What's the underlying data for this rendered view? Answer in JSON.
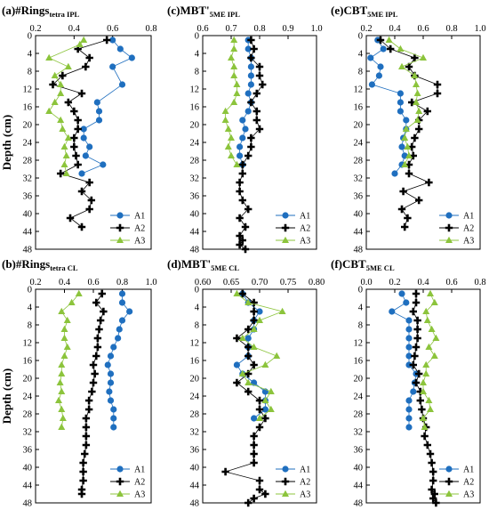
{
  "chart_data": [
    {
      "type": "scatter",
      "panel": "(a)",
      "title_main": "#Rings",
      "title_sub": "tetra IPL",
      "ylabel": "Depth (cm)",
      "xlim": [
        0.2,
        0.8
      ],
      "xticks": [
        "0.2",
        "0.4",
        "0.6",
        "0.8"
      ],
      "ylim": [
        0,
        48
      ],
      "yticks": [
        "0",
        "4",
        "8",
        "12",
        "16",
        "20",
        "24",
        "28",
        "32",
        "36",
        "40",
        "44",
        "48"
      ],
      "legend": "bottom-right",
      "series": [
        {
          "name": "A1",
          "color": "#1f6fbf",
          "marker": "circle",
          "lines": true,
          "x": [
            0.6,
            0.64,
            0.7,
            0.6,
            0.65,
            0.52,
            0.53,
            0.53,
            0.45,
            0.45,
            0.48,
            0.46,
            0.55,
            0.44
          ],
          "y": [
            1,
            3,
            5,
            7,
            11,
            15,
            17,
            19,
            21,
            23,
            25,
            27,
            29,
            31
          ]
        },
        {
          "name": "A2",
          "color": "#000000",
          "marker": "plus",
          "lines": true,
          "x": [
            0.57,
            0.42,
            0.48,
            0.46,
            0.34,
            0.29,
            0.44,
            0.37,
            0.4,
            0.42,
            0.42,
            0.4,
            0.4,
            0.41,
            0.42,
            0.33,
            0.48,
            0.44,
            0.49,
            0.48,
            0.38,
            0.44
          ],
          "y": [
            1,
            3,
            5,
            7,
            9,
            11,
            13,
            15,
            17,
            19,
            21,
            23,
            25,
            27,
            29,
            31,
            33,
            35,
            37,
            39,
            41,
            43
          ]
        },
        {
          "name": "A3",
          "color": "#8cc43c",
          "marker": "triangle",
          "lines": true,
          "x": [
            0.45,
            0.43,
            0.27,
            0.37,
            0.3,
            0.33,
            0.33,
            0.3,
            0.27,
            0.33,
            0.34,
            0.37,
            0.35,
            0.36,
            0.35,
            0.36
          ],
          "y": [
            1,
            2,
            5,
            7,
            9,
            11,
            13,
            15,
            17,
            19,
            21,
            23,
            25,
            27,
            29,
            31
          ]
        }
      ]
    },
    {
      "type": "scatter",
      "panel": "(c)",
      "title_main": "MBT'",
      "title_sub": "5ME IPL",
      "ylabel": "",
      "xlim": [
        0.6,
        1.0
      ],
      "xticks": [
        "0.6",
        "0.7",
        "0.8",
        "0.9",
        "1.0"
      ],
      "ylim": [
        0,
        48
      ],
      "yticks": [
        "0",
        "4",
        "8",
        "12",
        "16",
        "20",
        "24",
        "28",
        "32",
        "36",
        "40",
        "44",
        "48"
      ],
      "legend": "bottom-right",
      "series": [
        {
          "name": "A1",
          "color": "#1f6fbf",
          "marker": "circle",
          "lines": true,
          "x": [
            0.76,
            0.76,
            0.77,
            0.77,
            0.77,
            0.77,
            0.76,
            0.77,
            0.76,
            0.74,
            0.75,
            0.74,
            0.73,
            0.73,
            0.74
          ],
          "y": [
            1,
            3,
            5,
            7,
            9,
            11,
            13,
            15,
            17,
            19,
            21,
            23,
            25,
            27,
            29
          ]
        },
        {
          "name": "A2",
          "color": "#000000",
          "marker": "plus",
          "lines": true,
          "x": [
            0.77,
            0.78,
            0.77,
            0.8,
            0.8,
            0.81,
            0.79,
            0.77,
            0.79,
            0.79,
            0.8,
            0.77,
            0.77,
            0.76,
            0.74,
            0.74,
            0.73,
            0.73,
            0.74,
            0.76,
            0.73,
            0.75,
            0.73,
            0.74,
            0.73,
            0.75
          ],
          "y": [
            1,
            3,
            5,
            7,
            9,
            11,
            13,
            15,
            17,
            19,
            21,
            23,
            25,
            27,
            29,
            31,
            33,
            35,
            37,
            39,
            41,
            43,
            45,
            46,
            47,
            48
          ]
        },
        {
          "name": "A3",
          "color": "#8cc43c",
          "marker": "triangle",
          "lines": true,
          "x": [
            0.71,
            0.71,
            0.7,
            0.71,
            0.71,
            0.72,
            0.72,
            0.71,
            0.68,
            0.68,
            0.69,
            0.7,
            0.69,
            0.7,
            0.72
          ],
          "y": [
            1,
            3,
            5,
            7,
            9,
            11,
            13,
            15,
            17,
            19,
            21,
            23,
            25,
            27,
            29
          ]
        }
      ]
    },
    {
      "type": "scatter",
      "panel": "(e)",
      "title_main": "CBT",
      "title_sub": "5ME IPL",
      "ylabel": "",
      "xlim": [
        0.2,
        1.0
      ],
      "xticks": [
        "0.2",
        "0.4",
        "0.6",
        "0.8",
        "1.0"
      ],
      "ylim": [
        0,
        48
      ],
      "yticks": [
        "0",
        "4",
        "8",
        "12",
        "16",
        "20",
        "24",
        "28",
        "32",
        "36",
        "40",
        "44",
        "48"
      ],
      "legend": "bottom-right",
      "series": [
        {
          "name": "A1",
          "color": "#1f6fbf",
          "marker": "circle",
          "lines": true,
          "x": [
            0.28,
            0.32,
            0.23,
            0.3,
            0.29,
            0.24,
            0.44,
            0.44,
            0.44,
            0.48,
            0.48,
            0.46,
            0.45,
            0.47,
            0.45,
            0.4
          ],
          "y": [
            1,
            3,
            5,
            7,
            9,
            11,
            13,
            15,
            17,
            19,
            21,
            23,
            25,
            27,
            29,
            31
          ]
        },
        {
          "name": "A2",
          "color": "#000000",
          "marker": "plus",
          "lines": true,
          "x": [
            0.3,
            0.37,
            0.54,
            0.5,
            0.54,
            0.7,
            0.7,
            0.52,
            0.63,
            0.57,
            0.57,
            0.54,
            0.52,
            0.53,
            0.5,
            0.5,
            0.64,
            0.46,
            0.57,
            0.45,
            0.49,
            0.47
          ],
          "y": [
            1,
            3,
            5,
            7,
            9,
            11,
            13,
            15,
            17,
            19,
            21,
            23,
            25,
            27,
            29,
            31,
            33,
            35,
            37,
            39,
            41,
            43
          ]
        },
        {
          "name": "A3",
          "color": "#8cc43c",
          "marker": "triangle",
          "lines": true,
          "x": [
            0.36,
            0.44,
            0.6,
            0.45,
            0.54,
            0.55,
            0.56,
            0.55,
            0.57,
            0.56,
            0.48,
            0.47,
            0.49,
            0.5,
            0.47
          ],
          "y": [
            1,
            3,
            5,
            7,
            9,
            11,
            13,
            15,
            17,
            19,
            21,
            23,
            25,
            27,
            29
          ]
        }
      ]
    },
    {
      "type": "scatter",
      "panel": "(b)",
      "title_main": "#Rings",
      "title_sub": "tetra CL",
      "ylabel": "Depth (cm)",
      "xlim": [
        0.2,
        1.0
      ],
      "xticks": [
        "0.2",
        "0.4",
        "0.6",
        "0.8",
        "1.0"
      ],
      "ylim": [
        0,
        48
      ],
      "yticks": [
        "0",
        "4",
        "8",
        "12",
        "16",
        "20",
        "24",
        "28",
        "32",
        "36",
        "40",
        "44",
        "48"
      ],
      "legend": "bottom-right",
      "series": [
        {
          "name": "A1",
          "color": "#1f6fbf",
          "marker": "circle",
          "lines": true,
          "x": [
            0.8,
            0.8,
            0.85,
            0.8,
            0.78,
            0.77,
            0.74,
            0.72,
            0.7,
            0.72,
            0.72,
            0.71,
            0.72,
            0.74,
            0.74,
            0.74
          ],
          "y": [
            1,
            3,
            5,
            7,
            9,
            11,
            13,
            15,
            17,
            19,
            21,
            23,
            25,
            27,
            29,
            31
          ]
        },
        {
          "name": "A2",
          "color": "#000000",
          "marker": "plus",
          "lines": true,
          "x": [
            0.66,
            0.62,
            0.67,
            0.65,
            0.64,
            0.63,
            0.63,
            0.62,
            0.6,
            0.61,
            0.6,
            0.59,
            0.57,
            0.57,
            0.55,
            0.55,
            0.55,
            0.55,
            0.54,
            0.53,
            0.53,
            0.53,
            0.52,
            0.52
          ],
          "y": [
            1,
            3,
            5,
            7,
            9,
            11,
            13,
            15,
            17,
            19,
            21,
            23,
            25,
            27,
            29,
            31,
            33,
            35,
            37,
            39,
            41,
            43,
            45,
            46
          ]
        },
        {
          "name": "A3",
          "color": "#8cc43c",
          "marker": "triangle",
          "lines": true,
          "x": [
            0.5,
            0.45,
            0.38,
            0.42,
            0.4,
            0.4,
            0.42,
            0.4,
            0.38,
            0.38,
            0.37,
            0.38,
            0.36,
            0.38,
            0.39,
            0.38
          ],
          "y": [
            1,
            3,
            5,
            7,
            9,
            11,
            13,
            15,
            17,
            19,
            21,
            23,
            25,
            27,
            29,
            31
          ]
        }
      ]
    },
    {
      "type": "scatter",
      "panel": "(d)",
      "title_main": "MBT'",
      "title_sub": "5ME CL",
      "ylabel": "",
      "xlim": [
        0.6,
        0.8
      ],
      "xticks": [
        "0.60",
        "0.65",
        "0.70",
        "0.75",
        "0.80"
      ],
      "ylim": [
        0,
        48
      ],
      "yticks": [
        "0",
        "4",
        "8",
        "12",
        "16",
        "20",
        "24",
        "28",
        "32",
        "36",
        "40",
        "44",
        "48"
      ],
      "legend": "bottom-right",
      "series": [
        {
          "name": "A1",
          "color": "#1f6fbf",
          "marker": "circle",
          "lines": true,
          "x": [
            0.67,
            0.68,
            0.7,
            0.69,
            0.69,
            0.68,
            0.68,
            0.68,
            0.66,
            0.67,
            0.69,
            0.71,
            0.71,
            0.71,
            0.69
          ],
          "y": [
            1,
            3,
            5,
            7,
            9,
            11,
            13,
            15,
            17,
            19,
            21,
            23,
            25,
            27,
            29
          ]
        },
        {
          "name": "A2",
          "color": "#000000",
          "marker": "plus",
          "lines": true,
          "x": [
            0.67,
            0.69,
            0.69,
            0.69,
            0.68,
            0.66,
            0.68,
            0.68,
            0.69,
            0.68,
            0.66,
            0.68,
            0.7,
            0.7,
            0.71,
            0.7,
            0.69,
            0.69,
            0.69,
            0.69,
            0.64,
            0.7,
            0.7,
            0.71,
            0.69,
            0.68
          ],
          "y": [
            1,
            3,
            5,
            7,
            9,
            11,
            13,
            15,
            17,
            19,
            21,
            23,
            25,
            27,
            29,
            31,
            33,
            35,
            37,
            39,
            41,
            43,
            45,
            46,
            47,
            48
          ]
        },
        {
          "name": "A3",
          "color": "#8cc43c",
          "marker": "triangle",
          "lines": true,
          "x": [
            0.66,
            0.68,
            0.74,
            0.7,
            0.69,
            0.67,
            0.69,
            0.73,
            0.71,
            0.67,
            0.68,
            0.72,
            0.71,
            0.72,
            0.7
          ],
          "y": [
            1,
            3,
            5,
            7,
            9,
            11,
            13,
            15,
            17,
            19,
            21,
            23,
            25,
            27,
            29
          ]
        }
      ]
    },
    {
      "type": "scatter",
      "panel": "(f)",
      "title_main": "CBT",
      "title_sub": "5ME CL",
      "ylabel": "",
      "xlim": [
        0.0,
        0.8
      ],
      "xticks": [
        "0.0",
        "0.2",
        "0.4",
        "0.6",
        "0.8"
      ],
      "ylim": [
        0,
        48
      ],
      "yticks": [
        "0",
        "4",
        "8",
        "12",
        "16",
        "20",
        "24",
        "28",
        "32",
        "36",
        "40",
        "44",
        "48"
      ],
      "legend": "bottom-right",
      "series": [
        {
          "name": "A1",
          "color": "#1f6fbf",
          "marker": "circle",
          "lines": true,
          "x": [
            0.25,
            0.28,
            0.18,
            0.3,
            0.3,
            0.3,
            0.3,
            0.3,
            0.3,
            0.35,
            0.34,
            0.33,
            0.3,
            0.3,
            0.3,
            0.3
          ],
          "y": [
            1,
            3,
            5,
            7,
            9,
            11,
            13,
            15,
            17,
            19,
            21,
            23,
            25,
            27,
            29,
            31
          ]
        },
        {
          "name": "A2",
          "color": "#000000",
          "marker": "plus",
          "lines": true,
          "x": [
            0.35,
            0.35,
            0.33,
            0.36,
            0.36,
            0.36,
            0.35,
            0.34,
            0.33,
            0.37,
            0.35,
            0.38,
            0.38,
            0.39,
            0.4,
            0.42,
            0.41,
            0.43,
            0.45,
            0.46,
            0.47,
            0.47,
            0.46,
            0.48,
            0.47,
            0.49
          ],
          "y": [
            1,
            3,
            5,
            7,
            9,
            11,
            13,
            15,
            17,
            19,
            21,
            23,
            25,
            27,
            29,
            31,
            33,
            35,
            37,
            39,
            41,
            43,
            45,
            46,
            47,
            48
          ]
        },
        {
          "name": "A3",
          "color": "#8cc43c",
          "marker": "triangle",
          "lines": true,
          "x": [
            0.45,
            0.48,
            0.42,
            0.43,
            0.46,
            0.49,
            0.44,
            0.48,
            0.42,
            0.42,
            0.4,
            0.4,
            0.44,
            0.45,
            0.4,
            0.41
          ],
          "y": [
            1,
            3,
            5,
            7,
            9,
            11,
            13,
            15,
            17,
            19,
            21,
            23,
            25,
            27,
            29,
            31
          ]
        }
      ]
    }
  ]
}
